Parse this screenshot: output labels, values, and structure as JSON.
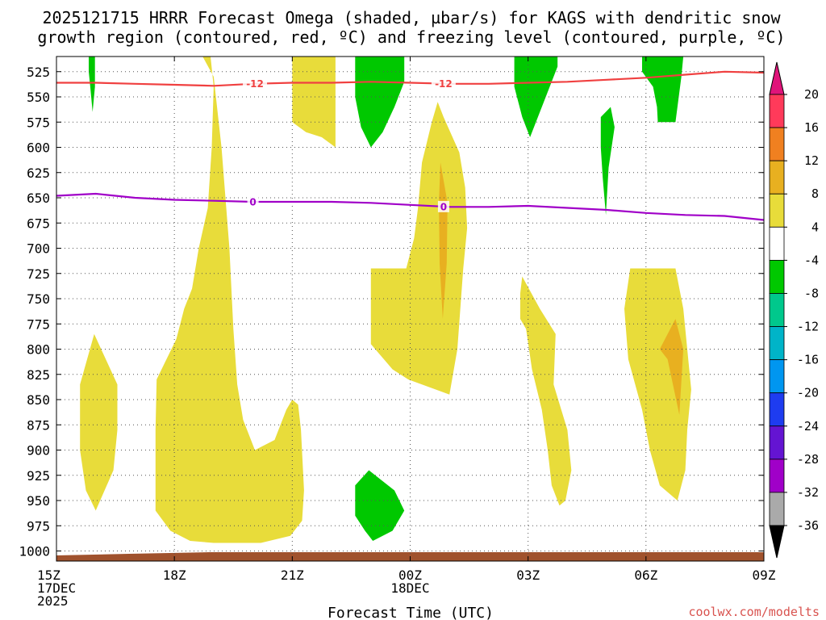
{
  "chart_data": {
    "type": "contour",
    "title_line1": "2025121715 HRRR Forecast Omega (shaded, µbar/s) for KAGS with dendritic snow",
    "title_line2": "growth region (contoured, red, ºC) and freezing level (contoured, purple, ºC)",
    "xlabel": "Forecast Time (UTC)",
    "watermark": "coolwx.com/modelts",
    "x_range_hours": [
      0,
      18
    ],
    "y_range_hpa": [
      510,
      1010
    ],
    "pressure_ticks": [
      525,
      550,
      575,
      600,
      625,
      650,
      675,
      700,
      725,
      750,
      775,
      800,
      825,
      850,
      875,
      900,
      925,
      950,
      975,
      1000
    ],
    "time_ticks": [
      {
        "h": 0,
        "lines": [
          "15Z",
          "17DEC",
          "2025"
        ]
      },
      {
        "h": 3,
        "lines": [
          "18Z"
        ]
      },
      {
        "h": 6,
        "lines": [
          "21Z"
        ]
      },
      {
        "h": 9,
        "lines": [
          "00Z",
          "18DEC"
        ]
      },
      {
        "h": 12,
        "lines": [
          "03Z"
        ]
      },
      {
        "h": 15,
        "lines": [
          "06Z"
        ]
      },
      {
        "h": 18,
        "lines": [
          "09Z"
        ]
      }
    ],
    "colorbar": {
      "labels": [
        "20",
        "16",
        "12",
        "8",
        "4",
        "-4",
        "-8",
        "-12",
        "-16",
        "-20",
        "-24",
        "-28",
        "-32",
        "-36"
      ],
      "colors": [
        "#ff3a5a",
        "#f08020",
        "#e8b020",
        "#e8dc3a",
        "#ffffff",
        "#00c800",
        "#00c88c",
        "#00b4c8",
        "#0096f0",
        "#1e3cf0",
        "#6414d2",
        "#a000c8",
        "#aaaaaa"
      ],
      "top_arrow": "#e0147a",
      "bottom_arrow": "#000000"
    },
    "shaded_regions": [
      {
        "fill": "#00c800",
        "pts": [
          [
            0.82,
            510
          ],
          [
            0.98,
            510
          ],
          [
            0.98,
            540
          ],
          [
            0.92,
            565
          ],
          [
            0.86,
            540
          ],
          [
            0.82,
            525
          ]
        ]
      },
      {
        "fill": "#e8dc3a",
        "pts": [
          [
            3.72,
            510
          ],
          [
            3.92,
            510
          ],
          [
            4.0,
            540
          ],
          [
            3.95,
            600
          ],
          [
            3.85,
            660
          ],
          [
            3.62,
            700
          ],
          [
            3.45,
            740
          ],
          [
            3.25,
            760
          ],
          [
            3.05,
            790
          ],
          [
            2.55,
            830
          ],
          [
            2.52,
            880
          ],
          [
            2.52,
            960
          ],
          [
            2.9,
            980
          ],
          [
            3.4,
            990
          ],
          [
            4.0,
            992
          ],
          [
            5.2,
            992
          ],
          [
            5.95,
            985
          ],
          [
            6.25,
            970
          ],
          [
            6.3,
            940
          ],
          [
            6.22,
            880
          ],
          [
            6.15,
            855
          ],
          [
            6.0,
            850
          ],
          [
            5.85,
            860
          ],
          [
            5.55,
            890
          ],
          [
            5.05,
            900
          ],
          [
            4.75,
            870
          ],
          [
            4.6,
            835
          ],
          [
            4.5,
            780
          ],
          [
            4.4,
            700
          ],
          [
            4.2,
            600
          ],
          [
            4.0,
            530
          ]
        ]
      },
      {
        "fill": "#e8dc3a",
        "pts": [
          [
            6.0,
            510
          ],
          [
            7.1,
            510
          ],
          [
            7.1,
            600
          ],
          [
            6.75,
            590
          ],
          [
            6.35,
            585
          ],
          [
            6.0,
            575
          ]
        ]
      },
      {
        "fill": "#00c800",
        "pts": [
          [
            7.6,
            510
          ],
          [
            8.85,
            510
          ],
          [
            8.85,
            535
          ],
          [
            8.6,
            560
          ],
          [
            8.3,
            585
          ],
          [
            8.0,
            600
          ],
          [
            7.75,
            580
          ],
          [
            7.6,
            550
          ]
        ]
      },
      {
        "fill": "#00c800",
        "pts": [
          [
            11.65,
            510
          ],
          [
            12.75,
            510
          ],
          [
            12.75,
            520
          ],
          [
            12.45,
            550
          ],
          [
            12.2,
            575
          ],
          [
            12.05,
            590
          ],
          [
            11.85,
            570
          ],
          [
            11.65,
            540
          ]
        ]
      },
      {
        "fill": "#00c800",
        "pts": [
          [
            14.9,
            510
          ],
          [
            15.95,
            510
          ],
          [
            15.9,
            530
          ],
          [
            15.75,
            575
          ],
          [
            15.3,
            575
          ],
          [
            15.28,
            560
          ],
          [
            15.18,
            540
          ],
          [
            14.9,
            525
          ]
        ]
      },
      {
        "fill": "#00c800",
        "pts": [
          [
            13.85,
            570
          ],
          [
            14.1,
            560
          ],
          [
            14.2,
            580
          ],
          [
            14.05,
            620
          ],
          [
            13.98,
            667
          ],
          [
            13.9,
            630
          ],
          [
            13.85,
            600
          ]
        ]
      },
      {
        "fill": "#e8dc3a",
        "pts": [
          [
            0.6,
            835
          ],
          [
            0.96,
            785
          ],
          [
            1.55,
            835
          ],
          [
            1.55,
            880
          ],
          [
            1.45,
            920
          ],
          [
            1.0,
            960
          ],
          [
            0.75,
            940
          ],
          [
            0.6,
            900
          ]
        ]
      },
      {
        "fill": "#e8dc3a",
        "pts": [
          [
            9.55,
            575
          ],
          [
            9.7,
            555
          ],
          [
            9.85,
            570
          ],
          [
            10.25,
            605
          ],
          [
            10.4,
            640
          ],
          [
            10.45,
            680
          ],
          [
            10.35,
            720
          ],
          [
            10.2,
            800
          ],
          [
            10.0,
            845
          ],
          [
            9.65,
            840
          ],
          [
            8.95,
            830
          ],
          [
            8.55,
            820
          ],
          [
            8.0,
            795
          ],
          [
            8.0,
            720
          ],
          [
            8.9,
            720
          ],
          [
            9.1,
            690
          ],
          [
            9.2,
            660
          ],
          [
            9.3,
            615
          ]
        ]
      },
      {
        "fill": "#e8b020",
        "pts": [
          [
            9.77,
            615
          ],
          [
            9.95,
            655
          ],
          [
            9.93,
            715
          ],
          [
            9.83,
            770
          ],
          [
            9.75,
            715
          ],
          [
            9.73,
            655
          ]
        ]
      },
      {
        "fill": "#e8dc3a",
        "pts": [
          [
            11.85,
            728
          ],
          [
            12.3,
            760
          ],
          [
            12.7,
            785
          ],
          [
            12.65,
            835
          ],
          [
            13.0,
            880
          ],
          [
            13.1,
            920
          ],
          [
            12.95,
            950
          ],
          [
            12.8,
            955
          ],
          [
            12.6,
            935
          ],
          [
            12.5,
            900
          ],
          [
            12.35,
            860
          ],
          [
            12.1,
            820
          ],
          [
            11.95,
            780
          ],
          [
            11.8,
            770
          ],
          [
            11.8,
            745
          ]
        ]
      },
      {
        "fill": "#e8dc3a",
        "pts": [
          [
            14.6,
            720
          ],
          [
            15.75,
            720
          ],
          [
            15.95,
            760
          ],
          [
            16.15,
            840
          ],
          [
            16.05,
            880
          ],
          [
            16.0,
            920
          ],
          [
            15.8,
            950
          ],
          [
            15.35,
            935
          ],
          [
            15.1,
            900
          ],
          [
            14.9,
            860
          ],
          [
            14.55,
            810
          ],
          [
            14.45,
            760
          ]
        ]
      },
      {
        "fill": "#e8b020",
        "pts": [
          [
            15.75,
            770
          ],
          [
            15.95,
            800
          ],
          [
            15.85,
            865
          ],
          [
            15.55,
            810
          ],
          [
            15.35,
            800
          ]
        ]
      },
      {
        "fill": "#00c800",
        "pts": [
          [
            7.6,
            935
          ],
          [
            7.95,
            920
          ],
          [
            8.6,
            940
          ],
          [
            8.85,
            960
          ],
          [
            8.55,
            980
          ],
          [
            8.05,
            990
          ],
          [
            7.85,
            980
          ],
          [
            7.6,
            965
          ]
        ]
      }
    ],
    "contour_lines": [
      {
        "name": "dgz-minus12",
        "color": "#f04040",
        "label": "-12",
        "pts": [
          [
            0,
            536
          ],
          [
            1,
            536
          ],
          [
            2,
            537
          ],
          [
            3,
            538
          ],
          [
            4,
            539
          ],
          [
            5,
            537
          ],
          [
            6,
            536
          ],
          [
            7,
            536
          ],
          [
            8,
            535
          ],
          [
            9,
            536
          ],
          [
            10,
            537
          ],
          [
            11,
            537
          ],
          [
            12,
            536
          ],
          [
            13,
            535
          ],
          [
            14,
            533
          ],
          [
            15,
            531
          ],
          [
            16,
            528
          ],
          [
            17,
            525
          ],
          [
            18,
            526
          ]
        ],
        "label_at_h": [
          5.05,
          9.85
        ]
      },
      {
        "name": "freezing-level-0",
        "color": "#a000c8",
        "label": "0",
        "pts": [
          [
            0,
            648
          ],
          [
            1,
            646
          ],
          [
            2,
            650
          ],
          [
            3,
            652
          ],
          [
            4,
            653
          ],
          [
            5,
            654
          ],
          [
            6,
            654
          ],
          [
            7,
            654
          ],
          [
            8,
            655
          ],
          [
            9,
            657
          ],
          [
            10,
            659
          ],
          [
            11,
            659
          ],
          [
            12,
            658
          ],
          [
            13,
            660
          ],
          [
            14,
            662
          ],
          [
            15,
            665
          ],
          [
            16,
            667
          ],
          [
            17,
            668
          ],
          [
            18,
            672
          ]
        ],
        "label_at_h": [
          5.0,
          9.85
        ]
      }
    ]
  }
}
